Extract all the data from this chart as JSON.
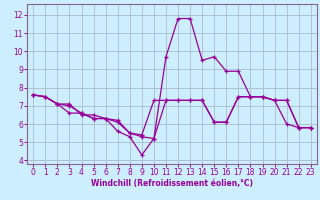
{
  "title": "",
  "xlabel": "Windchill (Refroidissement éolien,°C)",
  "bg_color": "#cceeff",
  "grid_color": "#aabbcc",
  "line_color": "#990099",
  "spine_color": "#886688",
  "xlim": [
    -0.5,
    23.5
  ],
  "ylim": [
    3.8,
    12.6
  ],
  "yticks": [
    4,
    5,
    6,
    7,
    8,
    9,
    10,
    11,
    12
  ],
  "xticks": [
    0,
    1,
    2,
    3,
    4,
    5,
    6,
    7,
    8,
    9,
    10,
    11,
    12,
    13,
    14,
    15,
    16,
    17,
    18,
    19,
    20,
    21,
    22,
    23
  ],
  "series": [
    {
      "x": [
        0,
        1,
        2,
        3,
        4,
        5,
        6,
        7,
        8,
        9,
        10,
        11,
        12,
        13,
        14,
        15,
        16,
        17,
        18,
        19,
        20,
        21,
        22,
        23
      ],
      "y": [
        7.6,
        7.5,
        7.1,
        7.1,
        6.5,
        6.5,
        6.3,
        6.2,
        5.5,
        5.4,
        7.3,
        7.3,
        7.3,
        7.3,
        7.3,
        6.1,
        6.1,
        7.5,
        7.5,
        7.5,
        7.3,
        7.3,
        5.8,
        5.8
      ]
    },
    {
      "x": [
        0,
        1,
        2,
        3,
        4,
        5,
        6,
        7,
        8,
        9,
        10,
        11,
        12,
        13,
        14,
        15,
        16,
        17,
        18,
        19,
        20,
        21,
        22,
        23
      ],
      "y": [
        7.6,
        7.5,
        7.1,
        6.6,
        6.6,
        6.3,
        6.3,
        5.6,
        5.3,
        4.3,
        5.2,
        9.7,
        11.8,
        11.8,
        9.5,
        9.7,
        8.9,
        8.9,
        7.5,
        7.5,
        7.3,
        7.3,
        5.8,
        5.8
      ]
    },
    {
      "x": [
        0,
        1,
        2,
        3,
        4,
        5,
        6,
        7,
        8,
        9,
        10,
        11,
        12,
        13,
        14,
        15,
        16,
        17,
        18,
        19,
        20,
        21,
        22,
        23
      ],
      "y": [
        7.6,
        7.5,
        7.1,
        7.0,
        6.6,
        6.3,
        6.3,
        6.1,
        5.5,
        5.3,
        5.2,
        7.3,
        7.3,
        7.3,
        7.3,
        6.1,
        6.1,
        7.5,
        7.5,
        7.5,
        7.3,
        6.0,
        5.8,
        5.8
      ]
    }
  ]
}
